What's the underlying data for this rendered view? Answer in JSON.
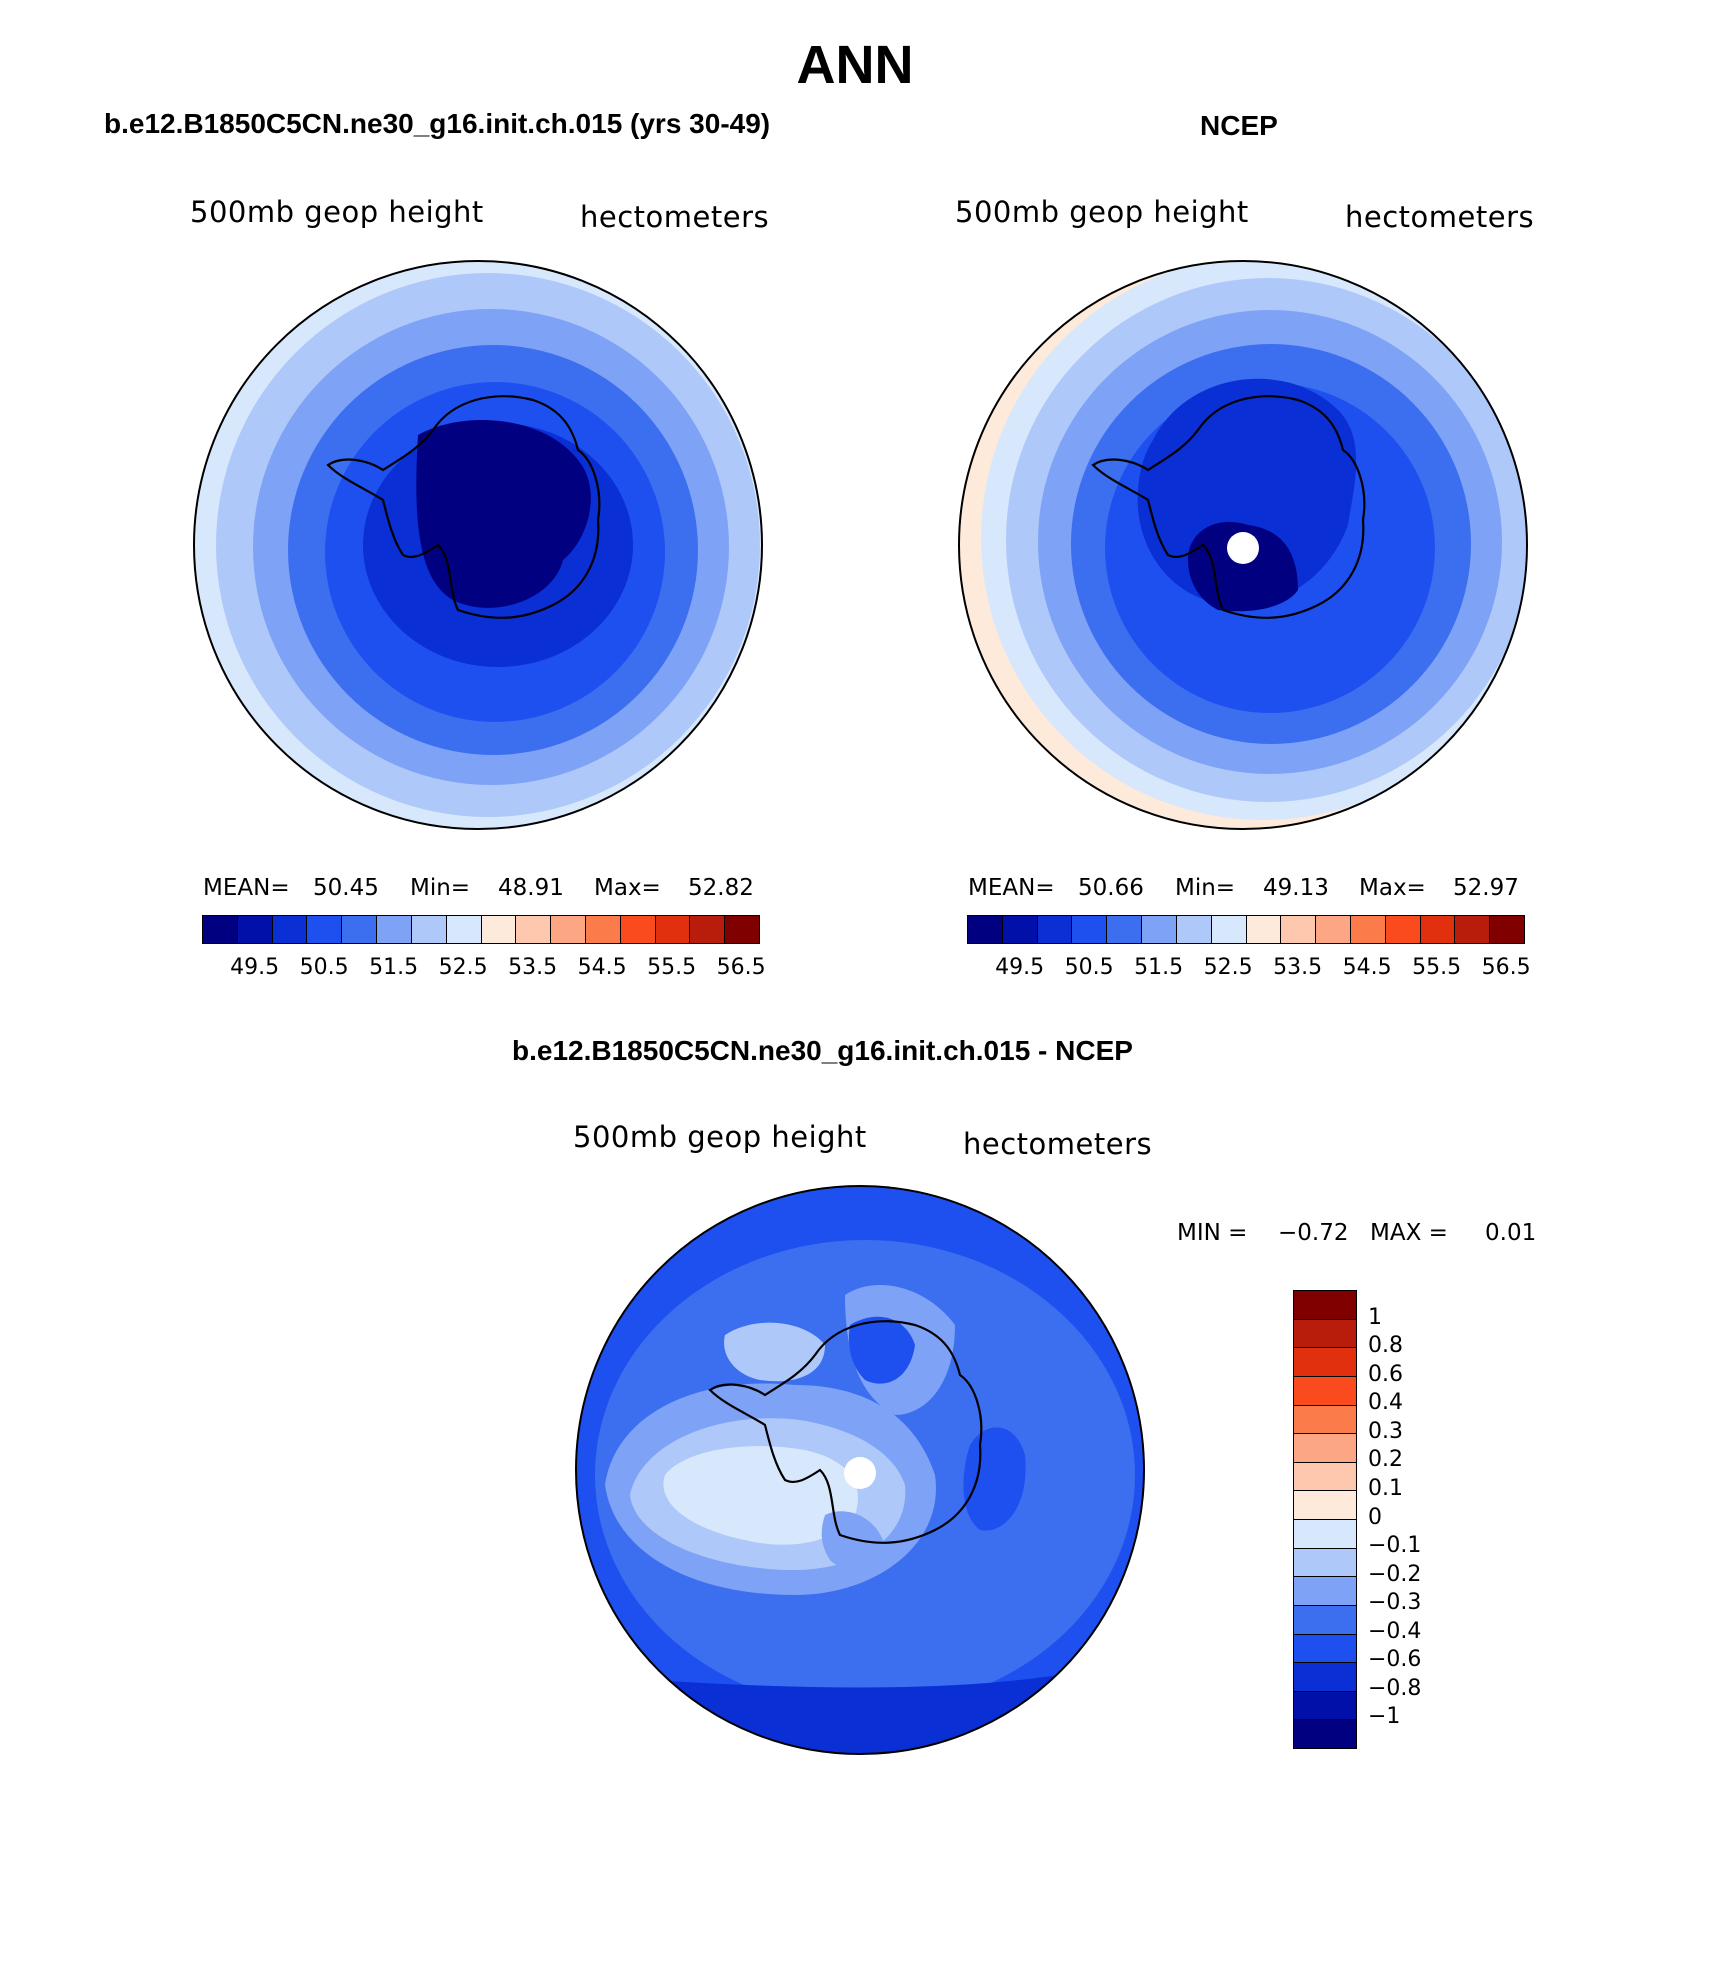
{
  "title": "ANN",
  "panel1": {
    "title": "b.e12.B1850C5CN.ne30_g16.init.ch.015 (yrs 30-49)",
    "left_label": "500mb geop height",
    "right_label": "hectometers",
    "mean_label": "MEAN=",
    "mean": "50.45",
    "min_label": "Min=",
    "min": "48.91",
    "max_label": "Max=",
    "max": "52.82"
  },
  "panel2": {
    "title": "NCEP",
    "left_label": "500mb geop height",
    "right_label": "hectometers",
    "mean_label": "MEAN=",
    "mean": "50.66",
    "min_label": "Min=",
    "min": "49.13",
    "max_label": "Max=",
    "max": "52.97"
  },
  "panel3": {
    "title": "b.e12.B1850C5CN.ne30_g16.init.ch.015 - NCEP",
    "left_label": "500mb geop height",
    "right_label": "hectometers",
    "min_label": "MIN =",
    "min": "−0.72",
    "max_label": "MAX =",
    "max": "0.01"
  },
  "colorbar_abs": {
    "colors": [
      "#000080",
      "#0010a8",
      "#0a2fd4",
      "#1e50f0",
      "#3c6ef0",
      "#7ea2f5",
      "#afc8fa",
      "#d8e8fc",
      "#feeadb",
      "#fdc8ae",
      "#fca684",
      "#fb7c4a",
      "#fa4b1e",
      "#e0300e",
      "#b81c0a",
      "#800000"
    ],
    "ticks": [
      "49.5",
      "50.5",
      "51.5",
      "52.5",
      "53.5",
      "54.5",
      "55.5",
      "56.5"
    ]
  },
  "colorbar_diff": {
    "colors": [
      "#800000",
      "#b81c0a",
      "#e0300e",
      "#fa4b1e",
      "#fb7c4a",
      "#fca684",
      "#fdc8ae",
      "#feeadb",
      "#d8e8fc",
      "#afc8fa",
      "#7ea2f5",
      "#3c6ef0",
      "#1e50f0",
      "#0a2fd4",
      "#0010a8",
      "#000080"
    ],
    "ticks": [
      "1",
      "0.8",
      "0.6",
      "0.4",
      "0.3",
      "0.2",
      "0.1",
      "0",
      "−0.1",
      "−0.2",
      "−0.3",
      "−0.4",
      "−0.6",
      "−0.8",
      "−1"
    ]
  }
}
